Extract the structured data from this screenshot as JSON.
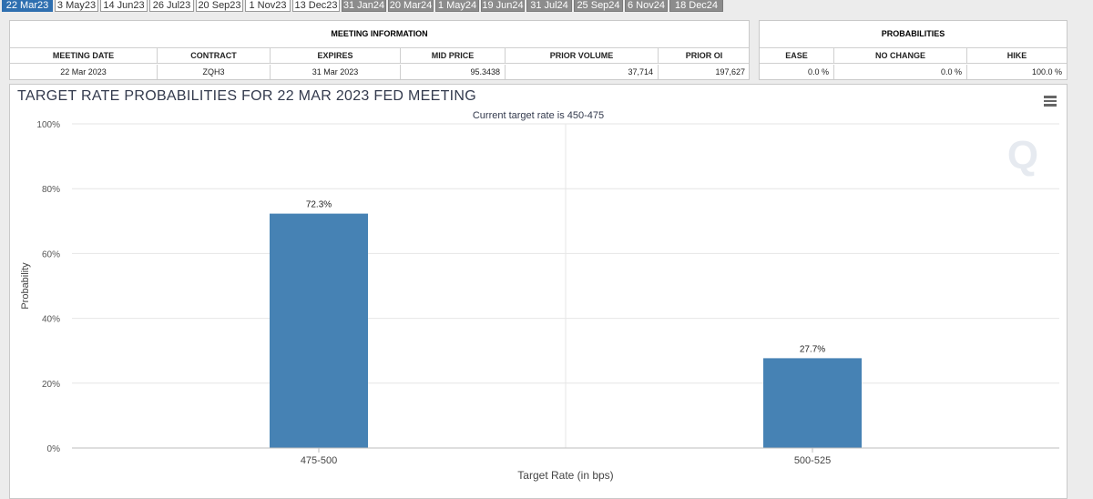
{
  "tabs": [
    {
      "label": "22 Mar23",
      "state": "active"
    },
    {
      "label": "3 May23",
      "state": "light"
    },
    {
      "label": "14 Jun23",
      "state": "light"
    },
    {
      "label": "26 Jul23",
      "state": "light"
    },
    {
      "label": "20 Sep23",
      "state": "light"
    },
    {
      "label": "1 Nov23",
      "state": "light"
    },
    {
      "label": "13 Dec23",
      "state": "light"
    },
    {
      "label": "31 Jan24",
      "state": "dark"
    },
    {
      "label": "20 Mar24",
      "state": "dark"
    },
    {
      "label": "1 May24",
      "state": "dark"
    },
    {
      "label": "19 Jun24",
      "state": "dark"
    },
    {
      "label": "31 Jul24",
      "state": "dark"
    },
    {
      "label": "25 Sep24",
      "state": "dark"
    },
    {
      "label": "6 Nov24",
      "state": "dark"
    },
    {
      "label": "18 Dec24",
      "state": "dark"
    }
  ],
  "meeting_info": {
    "title": "MEETING INFORMATION",
    "headers": {
      "meeting_date": "MEETING DATE",
      "contract": "CONTRACT",
      "expires": "EXPIRES",
      "mid_price": "MID PRICE",
      "prior_volume": "PRIOR VOLUME",
      "prior_oi": "PRIOR OI"
    },
    "values": {
      "meeting_date": "22 Mar 2023",
      "contract": "ZQH3",
      "expires": "31 Mar 2023",
      "mid_price": "95.3438",
      "prior_volume": "37,714",
      "prior_oi": "197,627"
    }
  },
  "probabilities": {
    "title": "PROBABILITIES",
    "headers": {
      "ease": "EASE",
      "no_change": "NO CHANGE",
      "hike": "HIKE"
    },
    "values": {
      "ease": "0.0 %",
      "no_change": "0.0 %",
      "hike": "100.0 %"
    }
  },
  "chart_data": {
    "type": "bar",
    "title": "TARGET RATE PROBABILITIES FOR 22 MAR 2023 FED MEETING",
    "subtitle": "Current target rate is 450-475",
    "xlabel": "Target Rate (in bps)",
    "ylabel": "Probability",
    "categories": [
      "475-500",
      "500-525"
    ],
    "values": [
      72.3,
      27.7
    ],
    "data_labels": [
      "72.3%",
      "27.7%"
    ],
    "ylim": [
      0,
      100
    ],
    "yticks": [
      "0%",
      "20%",
      "40%",
      "60%",
      "80%",
      "100%"
    ],
    "grid": true,
    "color": "#4682b4",
    "watermark": "Q"
  }
}
